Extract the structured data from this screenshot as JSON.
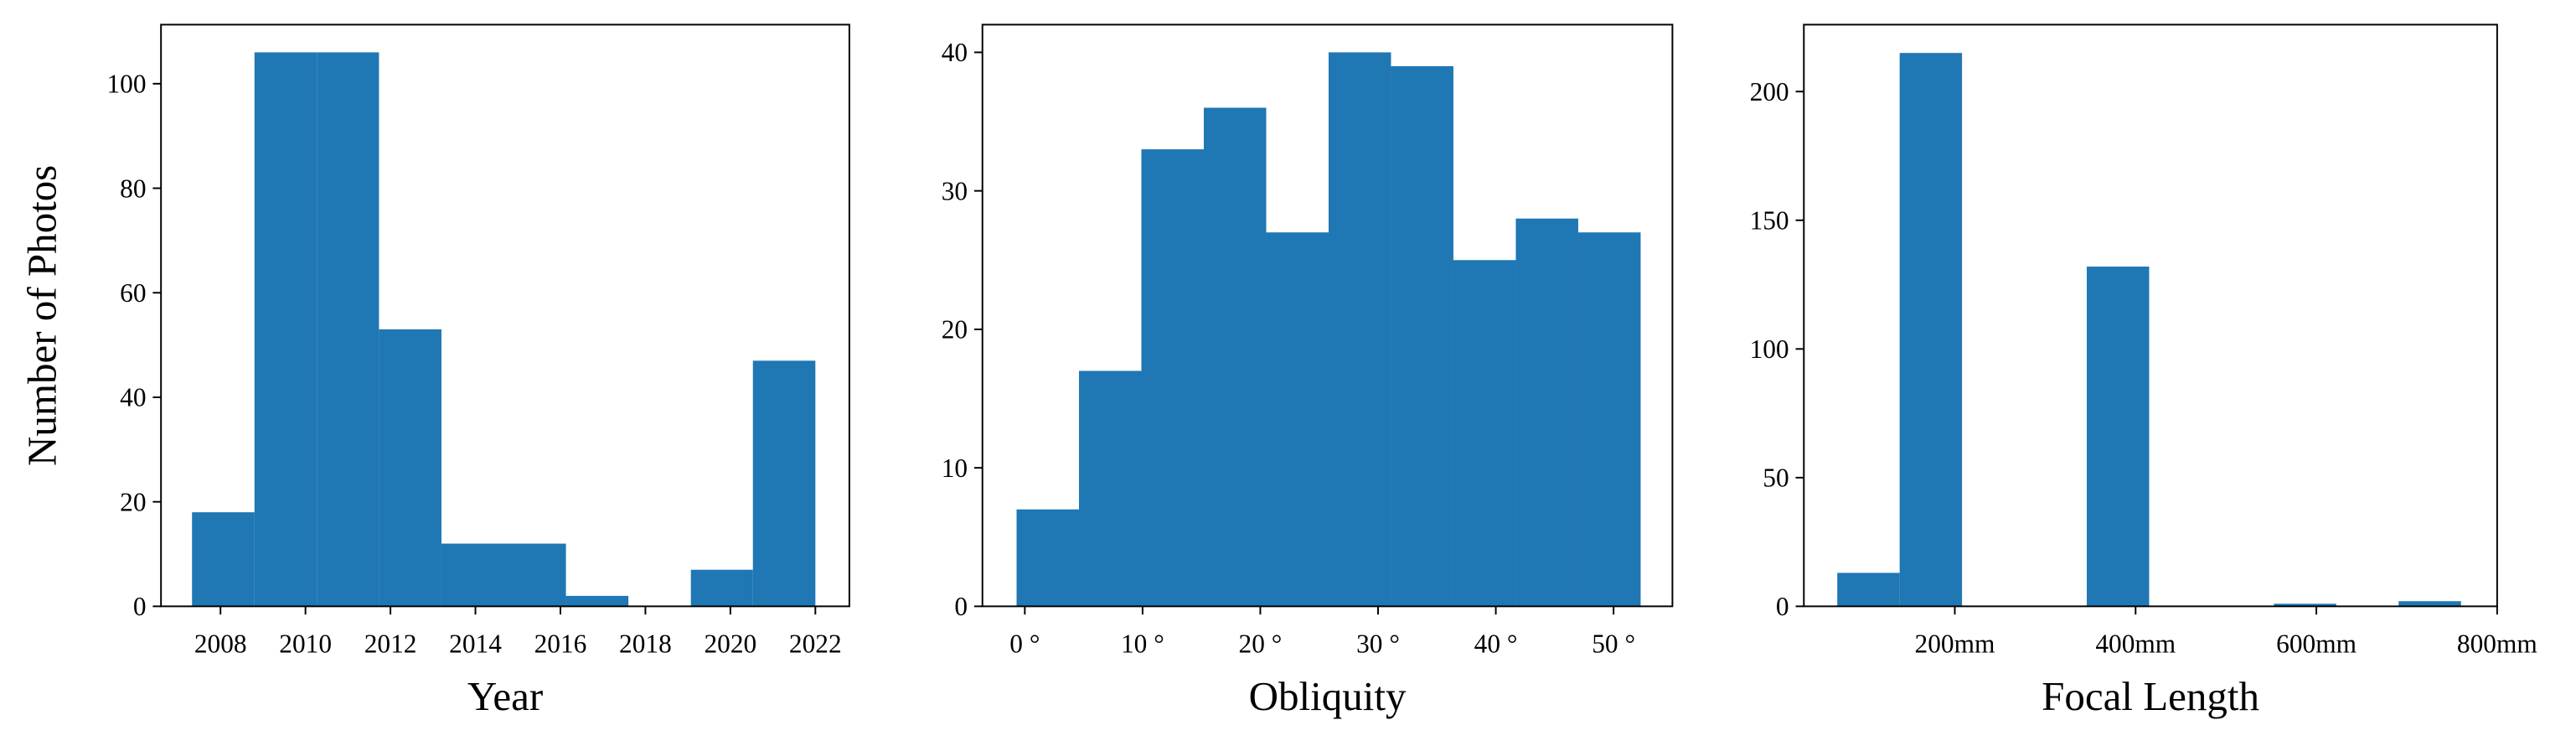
{
  "chart_data": [
    {
      "type": "histogram",
      "xlabel": "Year",
      "ylabel": "Number of Photos",
      "color": "#1f77b4",
      "bins": [
        2007.33,
        2008.8,
        2010.27,
        2011.73,
        2013.2,
        2014.67,
        2016.13,
        2017.6,
        2019.07,
        2020.53,
        2022
      ],
      "values": [
        18,
        106,
        106,
        53,
        12,
        12,
        2,
        0,
        7,
        47
      ],
      "xlim": [
        2006.6,
        2022.8
      ],
      "ylim": [
        0,
        111.3
      ],
      "xticks": [
        2008,
        2010,
        2012,
        2014,
        2016,
        2018,
        2020,
        2022
      ],
      "yticks": [
        0,
        20,
        40,
        60,
        80,
        100
      ]
    },
    {
      "type": "histogram",
      "xlabel": "Obliquity",
      "color": "#1f77b4",
      "bins": [
        -0.7,
        4.6,
        9.9,
        15.2,
        20.5,
        25.8,
        31.1,
        36.4,
        41.7,
        47.0,
        52.3
      ],
      "values": [
        7,
        17,
        33,
        36,
        27,
        40,
        39,
        25,
        28,
        27
      ],
      "xlim": [
        -3.6,
        55.0
      ],
      "ylim": [
        0,
        42
      ],
      "xticks": [
        {
          "value": 0,
          "label": "0 °"
        },
        {
          "value": 10,
          "label": "10 °"
        },
        {
          "value": 20,
          "label": "20 °"
        },
        {
          "value": 30,
          "label": "30 °"
        },
        {
          "value": 40,
          "label": "40 °"
        },
        {
          "value": 50,
          "label": "50 °"
        }
      ],
      "yticks": [
        0,
        10,
        20,
        30,
        40
      ]
    },
    {
      "type": "histogram",
      "xlabel": "Focal Length",
      "color": "#1f77b4",
      "bins": [
        70,
        139,
        208,
        277,
        346,
        415,
        484,
        553,
        622,
        691,
        760
      ],
      "values": [
        13,
        215,
        0,
        0,
        132,
        0,
        0,
        1,
        0,
        2
      ],
      "xlim": [
        33,
        800
      ],
      "ylim": [
        0,
        226
      ],
      "xticks": [
        {
          "value": 200,
          "label": "200mm"
        },
        {
          "value": 400,
          "label": "400mm"
        },
        {
          "value": 600,
          "label": "600mm"
        },
        {
          "value": 800,
          "label": "800mm"
        }
      ],
      "yticks": [
        0,
        50,
        100,
        150,
        200
      ]
    }
  ]
}
